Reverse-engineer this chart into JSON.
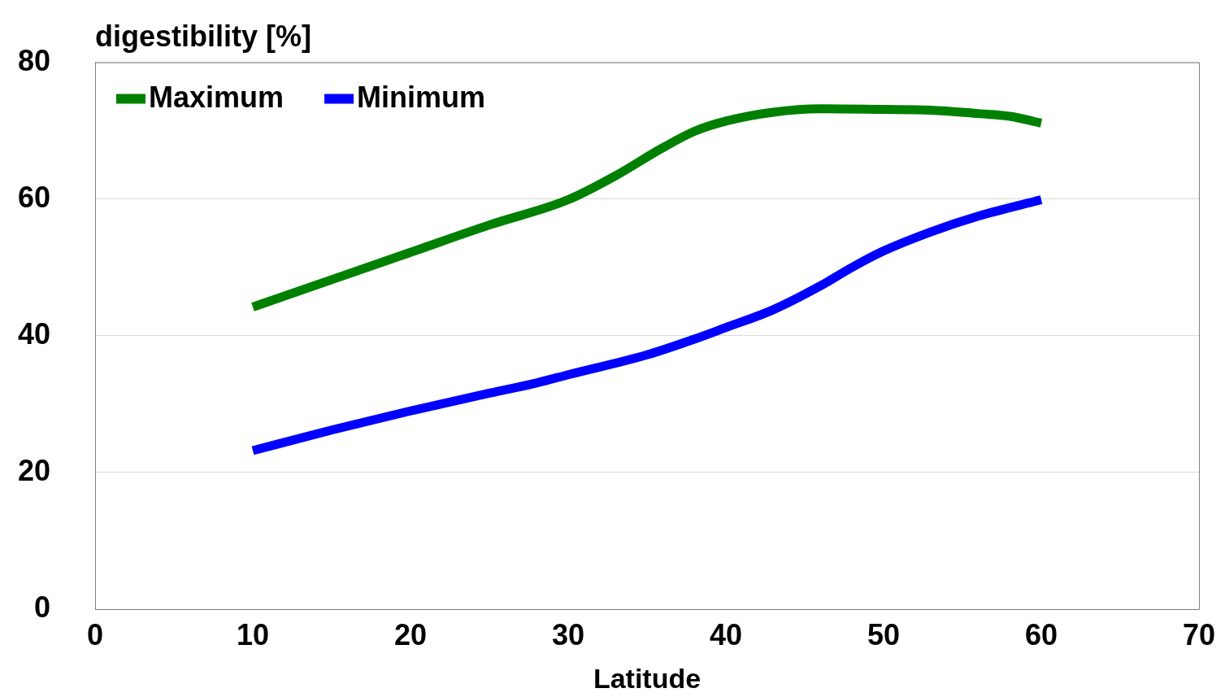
{
  "chart_data": {
    "type": "line",
    "ylabel": "digestibility [%]",
    "xlabel": "Latitude",
    "xlim": [
      0,
      70
    ],
    "xticks": [
      0,
      10,
      20,
      30,
      40,
      50,
      60,
      70
    ],
    "ylim": [
      0,
      80
    ],
    "yticks": [
      0,
      20,
      40,
      60,
      80
    ],
    "grid": "y",
    "legend": "top left",
    "marker": "none",
    "line_style": "solid",
    "series": [
      {
        "name": "Maximum",
        "color": "#008000",
        "x": [
          10,
          20,
          25,
          30,
          33,
          36,
          38,
          40,
          43,
          46,
          50,
          53,
          56,
          58,
          60
        ],
        "values": [
          44.2,
          52.2,
          56.2,
          59.9,
          63.4,
          67.5,
          69.9,
          71.4,
          72.7,
          73.2,
          73.1,
          73.0,
          72.5,
          72.1,
          71.1
        ]
      },
      {
        "name": "Minimum",
        "color": "#0000ff",
        "x": [
          10,
          15,
          20,
          25,
          28,
          30,
          35,
          38,
          40,
          43,
          46,
          48,
          50,
          53,
          56,
          60
        ],
        "values": [
          23.2,
          26.2,
          29.0,
          31.6,
          33.1,
          34.3,
          37.2,
          39.5,
          41.2,
          43.8,
          47.3,
          50.0,
          52.4,
          55.2,
          57.5,
          59.9
        ]
      }
    ]
  }
}
